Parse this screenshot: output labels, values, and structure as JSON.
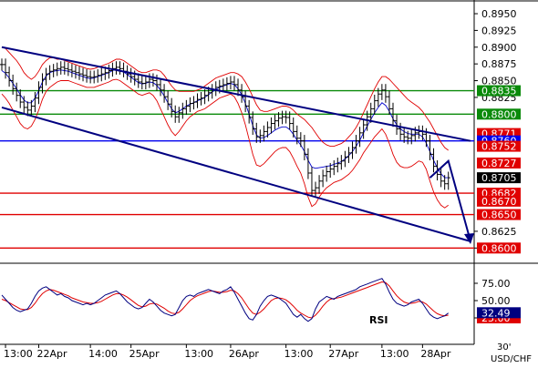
{
  "chart_data": {
    "type": "line",
    "symbol": "USD/CHF",
    "timeframe": "30'",
    "price_axis": {
      "ylim": [
        0.858,
        0.8965
      ],
      "ticks": [
        "0.8950",
        "0.8925",
        "0.8900",
        "0.8875",
        "0.8850",
        "0.8825",
        "0.8625",
        "0.8600"
      ]
    },
    "rsi_axis": {
      "ylim": [
        0,
        100
      ],
      "ticks": [
        "75.00",
        "50.00",
        "25.00"
      ]
    },
    "x_ticks": [
      {
        "label": "13:00",
        "i": 1
      },
      {
        "label": "22Apr",
        "i": 10
      },
      {
        "label": "14:00",
        "i": 24
      },
      {
        "label": "25Apr",
        "i": 35
      },
      {
        "label": "13:00",
        "i": 50
      },
      {
        "label": "26Apr",
        "i": 62
      },
      {
        "label": "13:00",
        "i": 77
      },
      {
        "label": "27Apr",
        "i": 89
      },
      {
        "label": "13:00",
        "i": 103
      },
      {
        "label": "28Apr",
        "i": 114
      }
    ],
    "x_range": [
      0,
      127
    ],
    "levels": [
      {
        "label": "0.8835",
        "value": 0.8835,
        "color": "#0a8a0a",
        "tag_bg": "#0a8a0a",
        "tag_fg": "#ffffff"
      },
      {
        "label": "0.8800",
        "value": 0.88,
        "color": "#0a8a0a",
        "tag_bg": "#0a8a0a",
        "tag_fg": "#ffffff"
      },
      {
        "label": "0.8771",
        "value": 0.8771,
        "color": "",
        "tag_bg": "#e00000",
        "tag_fg": "#ffffff"
      },
      {
        "label": "0.8760",
        "value": 0.876,
        "color": "#0000ee",
        "tag_bg": "#0000ee",
        "tag_fg": "#ffffff"
      },
      {
        "label": "0.8752",
        "value": 0.8752,
        "color": "",
        "tag_bg": "#e00000",
        "tag_fg": "#ffffff"
      },
      {
        "label": "0.8727",
        "value": 0.8727,
        "color": "",
        "tag_bg": "#e00000",
        "tag_fg": "#ffffff"
      },
      {
        "label": "0.8705",
        "value": 0.8705,
        "color": "",
        "tag_bg": "#000000",
        "tag_fg": "#ffffff"
      },
      {
        "label": "0.8682",
        "value": 0.8682,
        "color": "#e00000",
        "tag_bg": "#e00000",
        "tag_fg": "#ffffff"
      },
      {
        "label": "0.8670",
        "value": 0.867,
        "color": "",
        "tag_bg": "#e00000",
        "tag_fg": "#ffffff"
      },
      {
        "label": "0.8650",
        "value": 0.865,
        "color": "#e00000",
        "tag_bg": "#e00000",
        "tag_fg": "#ffffff"
      },
      {
        "label": "0.8600",
        "value": 0.86,
        "color": "#e00000",
        "tag_bg": "#e00000",
        "tag_fg": "#ffffff"
      }
    ],
    "trend_channel": {
      "color": "#000080",
      "upper": [
        [
          0,
          0.89
        ],
        [
          127,
          0.876
        ]
      ],
      "lower": [
        [
          0,
          0.881
        ],
        [
          127,
          0.861
        ]
      ]
    },
    "forecast_arrow": {
      "color": "#000080",
      "points": [
        [
          116,
          0.8705
        ],
        [
          121,
          0.873
        ],
        [
          127,
          0.861
        ]
      ]
    },
    "price_series": {
      "name": "",
      "color": "#000000",
      "close": [
        0.8874,
        0.8862,
        0.885,
        0.8838,
        0.8828,
        0.8818,
        0.881,
        0.8806,
        0.8812,
        0.8824,
        0.884,
        0.8852,
        0.886,
        0.8864,
        0.8866,
        0.8868,
        0.887,
        0.8868,
        0.8866,
        0.8864,
        0.8862,
        0.886,
        0.8858,
        0.8856,
        0.8855,
        0.8856,
        0.8858,
        0.886,
        0.8862,
        0.8865,
        0.8868,
        0.887,
        0.8868,
        0.8864,
        0.886,
        0.8856,
        0.8852,
        0.8848,
        0.8846,
        0.8848,
        0.8852,
        0.885,
        0.8844,
        0.8836,
        0.8826,
        0.8815,
        0.8804,
        0.8796,
        0.8802,
        0.8808,
        0.8812,
        0.8816,
        0.8818,
        0.8822,
        0.8824,
        0.8828,
        0.8832,
        0.8836,
        0.884,
        0.8842,
        0.8844,
        0.8846,
        0.8848,
        0.8844,
        0.8836,
        0.8826,
        0.8812,
        0.8795,
        0.8778,
        0.8766,
        0.8768,
        0.8774,
        0.878,
        0.8786,
        0.879,
        0.8794,
        0.8796,
        0.8795,
        0.8786,
        0.8774,
        0.8764,
        0.876,
        0.874,
        0.8712,
        0.8686,
        0.869,
        0.87,
        0.8708,
        0.8714,
        0.8718,
        0.8722,
        0.8726,
        0.873,
        0.8736,
        0.8742,
        0.875,
        0.876,
        0.8772,
        0.8784,
        0.8796,
        0.8808,
        0.882,
        0.883,
        0.8836,
        0.8826,
        0.8808,
        0.879,
        0.8778,
        0.877,
        0.8766,
        0.8764,
        0.8768,
        0.8772,
        0.8774,
        0.877,
        0.876,
        0.874,
        0.8722,
        0.871,
        0.87,
        0.8696,
        0.8705
      ]
    },
    "bollinger": {
      "color": "#e00000",
      "upper": [
        0.89,
        0.8898,
        0.8892,
        0.8886,
        0.888,
        0.8872,
        0.8862,
        0.8856,
        0.8852,
        0.8856,
        0.8864,
        0.8874,
        0.888,
        0.8884,
        0.8884,
        0.8882,
        0.8882,
        0.888,
        0.8878,
        0.8876,
        0.8874,
        0.8872,
        0.887,
        0.8868,
        0.8867,
        0.8868,
        0.887,
        0.8872,
        0.8874,
        0.8876,
        0.8879,
        0.8882,
        0.8882,
        0.888,
        0.8876,
        0.8872,
        0.8868,
        0.8864,
        0.8862,
        0.8862,
        0.8864,
        0.8866,
        0.8866,
        0.8864,
        0.8858,
        0.885,
        0.8842,
        0.8836,
        0.8834,
        0.8834,
        0.8834,
        0.8834,
        0.8834,
        0.8836,
        0.8838,
        0.8842,
        0.8846,
        0.885,
        0.8854,
        0.8856,
        0.8858,
        0.886,
        0.8862,
        0.8862,
        0.886,
        0.8856,
        0.8848,
        0.8838,
        0.8826,
        0.8814,
        0.8806,
        0.8804,
        0.8804,
        0.8806,
        0.8808,
        0.881,
        0.8812,
        0.8812,
        0.881,
        0.8806,
        0.88,
        0.8796,
        0.8792,
        0.8786,
        0.878,
        0.8772,
        0.8764,
        0.8758,
        0.8754,
        0.8752,
        0.8752,
        0.8754,
        0.8756,
        0.876,
        0.8766,
        0.8772,
        0.878,
        0.879,
        0.8802,
        0.8814,
        0.8826,
        0.8838,
        0.8848,
        0.8856,
        0.8856,
        0.8852,
        0.8846,
        0.884,
        0.8834,
        0.8828,
        0.8822,
        0.8818,
        0.8814,
        0.881,
        0.8804,
        0.8796,
        0.8788,
        0.8778,
        0.8768,
        0.8758,
        0.875,
        0.8746
      ],
      "lower": [
        0.883,
        0.8824,
        0.8816,
        0.8806,
        0.8796,
        0.8786,
        0.878,
        0.8778,
        0.8782,
        0.8792,
        0.8806,
        0.8822,
        0.8834,
        0.884,
        0.8844,
        0.8848,
        0.885,
        0.885,
        0.885,
        0.8848,
        0.8846,
        0.8844,
        0.8842,
        0.884,
        0.884,
        0.884,
        0.8842,
        0.8844,
        0.8846,
        0.8848,
        0.8851,
        0.8852,
        0.885,
        0.8846,
        0.8842,
        0.8838,
        0.8834,
        0.883,
        0.8828,
        0.883,
        0.8832,
        0.8828,
        0.882,
        0.8808,
        0.8796,
        0.8784,
        0.8774,
        0.8768,
        0.8774,
        0.8782,
        0.879,
        0.8796,
        0.88,
        0.8804,
        0.8806,
        0.8808,
        0.8812,
        0.8816,
        0.882,
        0.8824,
        0.8826,
        0.8828,
        0.883,
        0.8826,
        0.8816,
        0.8802,
        0.8784,
        0.8762,
        0.874,
        0.8724,
        0.8722,
        0.8726,
        0.8732,
        0.8738,
        0.8744,
        0.8748,
        0.875,
        0.875,
        0.8744,
        0.8734,
        0.8722,
        0.8712,
        0.8696,
        0.8676,
        0.8662,
        0.8666,
        0.8676,
        0.8684,
        0.869,
        0.8694,
        0.8698,
        0.87,
        0.8702,
        0.8706,
        0.871,
        0.8716,
        0.8724,
        0.8732,
        0.8742,
        0.875,
        0.8758,
        0.8766,
        0.8772,
        0.8778,
        0.877,
        0.8756,
        0.874,
        0.8728,
        0.8722,
        0.872,
        0.872,
        0.8722,
        0.8726,
        0.873,
        0.8728,
        0.8718,
        0.87,
        0.8684,
        0.8672,
        0.8664,
        0.866,
        0.8664
      ]
    },
    "moving_average": {
      "color": "#0000cc",
      "values": [
        0.8865,
        0.8861,
        0.8854,
        0.8846,
        0.8838,
        0.8829,
        0.8821,
        0.8817,
        0.8817,
        0.8824,
        0.8835,
        0.8848,
        0.8857,
        0.8862,
        0.8864,
        0.8865,
        0.8866,
        0.8865,
        0.8864,
        0.8862,
        0.886,
        0.8858,
        0.8856,
        0.8854,
        0.8853,
        0.8854,
        0.8856,
        0.8858,
        0.886,
        0.8862,
        0.8865,
        0.8867,
        0.8866,
        0.8863,
        0.8859,
        0.8855,
        0.8851,
        0.8847,
        0.8845,
        0.8846,
        0.8848,
        0.8847,
        0.8843,
        0.8836,
        0.8827,
        0.8817,
        0.8808,
        0.8802,
        0.8804,
        0.8808,
        0.8812,
        0.8815,
        0.8817,
        0.882,
        0.8822,
        0.8825,
        0.8829,
        0.8833,
        0.8837,
        0.884,
        0.8842,
        0.8844,
        0.8846,
        0.8844,
        0.8838,
        0.8829,
        0.8816,
        0.88,
        0.8783,
        0.8769,
        0.8764,
        0.8765,
        0.8768,
        0.8772,
        0.8776,
        0.8779,
        0.8781,
        0.8781,
        0.8777,
        0.877,
        0.8761,
        0.8754,
        0.8744,
        0.8731,
        0.8721,
        0.8719,
        0.872,
        0.8721,
        0.8722,
        0.8723,
        0.8725,
        0.8727,
        0.8729,
        0.8733,
        0.8738,
        0.8744,
        0.8752,
        0.8761,
        0.8772,
        0.8782,
        0.8792,
        0.8802,
        0.881,
        0.8817,
        0.8813,
        0.8804,
        0.8793,
        0.8784,
        0.8778,
        0.8774,
        0.8771,
        0.877,
        0.877,
        0.877,
        0.8766,
        0.8757,
        0.8744,
        0.8731,
        0.872,
        0.8711,
        0.8705,
        0.8705
      ]
    },
    "rsi": {
      "label": "RSI",
      "current": "32.49",
      "signal_tag": "25.00",
      "line_color": "#000080",
      "signal_color": "#e00000",
      "values": [
        58,
        52,
        46,
        40,
        36,
        34,
        36,
        38,
        46,
        56,
        64,
        68,
        70,
        66,
        62,
        58,
        60,
        56,
        54,
        50,
        48,
        46,
        44,
        46,
        44,
        46,
        50,
        54,
        58,
        60,
        62,
        64,
        60,
        54,
        48,
        44,
        40,
        38,
        40,
        46,
        52,
        48,
        42,
        36,
        32,
        30,
        28,
        30,
        40,
        50,
        56,
        58,
        56,
        60,
        62,
        64,
        66,
        64,
        62,
        60,
        64,
        66,
        70,
        62,
        52,
        42,
        32,
        24,
        22,
        30,
        42,
        50,
        56,
        58,
        56,
        54,
        50,
        46,
        38,
        30,
        26,
        30,
        24,
        20,
        24,
        38,
        48,
        52,
        56,
        54,
        52,
        56,
        58,
        60,
        62,
        64,
        66,
        70,
        72,
        74,
        76,
        78,
        80,
        82,
        74,
        62,
        52,
        46,
        44,
        42,
        44,
        48,
        50,
        52,
        46,
        38,
        30,
        26,
        24,
        26,
        28,
        32
      ],
      "signal": [
        52,
        50,
        47,
        44,
        41,
        38,
        37,
        37,
        40,
        46,
        54,
        60,
        64,
        66,
        65,
        63,
        61,
        59,
        57,
        54,
        52,
        50,
        48,
        47,
        46,
        46,
        47,
        49,
        52,
        55,
        58,
        60,
        60,
        58,
        55,
        51,
        47,
        43,
        41,
        42,
        45,
        46,
        45,
        42,
        39,
        35,
        32,
        31,
        33,
        38,
        44,
        50,
        54,
        57,
        59,
        61,
        63,
        64,
        63,
        62,
        62,
        63,
        65,
        64,
        60,
        54,
        46,
        38,
        32,
        30,
        33,
        38,
        44,
        50,
        53,
        54,
        53,
        51,
        47,
        42,
        36,
        32,
        29,
        26,
        25,
        29,
        35,
        42,
        48,
        52,
        53,
        54,
        55,
        57,
        59,
        61,
        63,
        65,
        67,
        69,
        71,
        73,
        75,
        77,
        76,
        71,
        64,
        57,
        52,
        48,
        46,
        46,
        47,
        49,
        48,
        45,
        40,
        35,
        31,
        29,
        28,
        29
      ]
    }
  }
}
